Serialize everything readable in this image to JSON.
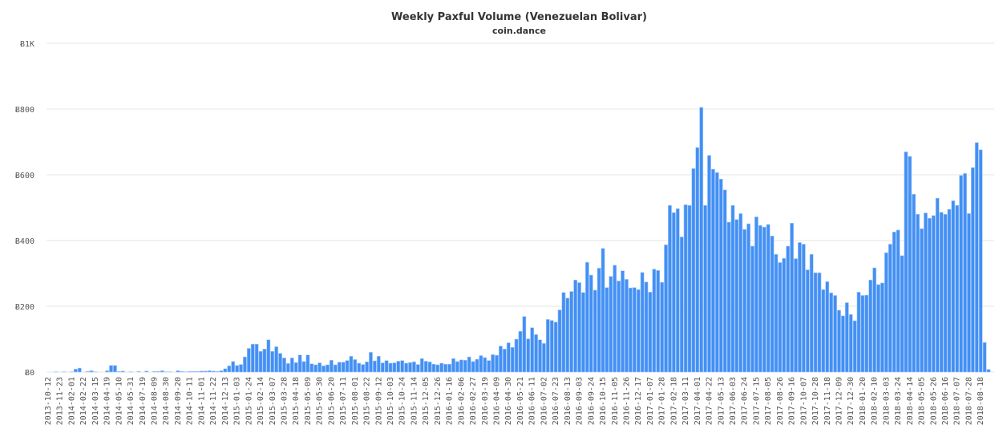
{
  "chart_data": {
    "type": "bar",
    "title": "Weekly Paxful Volume (Venezuelan Bolivar)",
    "subtitle": "coin.dance",
    "xlabel": "",
    "ylabel": "",
    "ylim": [
      0,
      1000
    ],
    "grid": true,
    "y_ticks": [
      0,
      200,
      400,
      600,
      800,
      1000
    ],
    "y_tick_labels": [
      "Ƀ0",
      "Ƀ200",
      "Ƀ400",
      "Ƀ600",
      "Ƀ800",
      "Ƀ1K"
    ],
    "x_tick_labels": [
      "2013-10-12",
      "2013-11-23",
      "2014-02-01",
      "2014-02-22",
      "2014-03-15",
      "2014-04-19",
      "2014-05-10",
      "2014-05-31",
      "2014-07-19",
      "2014-08-09",
      "2014-08-30",
      "2014-09-20",
      "2014-10-11",
      "2014-11-01",
      "2014-11-22",
      "2014-12-13",
      "2015-01-03",
      "2015-01-24",
      "2015-02-14",
      "2015-03-07",
      "2015-03-28",
      "2015-04-18",
      "2015-05-09",
      "2015-05-30",
      "2015-06-20",
      "2015-07-11",
      "2015-08-01",
      "2015-08-22",
      "2015-09-12",
      "2015-10-03",
      "2015-10-24",
      "2015-11-14",
      "2015-12-05",
      "2015-12-26",
      "2016-01-16",
      "2016-02-06",
      "2016-02-27",
      "2016-03-19",
      "2016-04-09",
      "2016-04-30",
      "2016-05-21",
      "2016-06-11",
      "2016-07-02",
      "2016-07-23",
      "2016-08-13",
      "2016-09-03",
      "2016-09-24",
      "2016-10-15",
      "2016-11-05",
      "2016-11-26",
      "2016-12-17",
      "2017-01-07",
      "2017-01-28",
      "2017-02-18",
      "2017-03-11",
      "2017-04-01",
      "2017-04-22",
      "2017-05-13",
      "2017-06-03",
      "2017-06-24",
      "2017-07-15",
      "2017-08-05",
      "2017-08-26",
      "2017-09-16",
      "2017-10-07",
      "2017-10-28",
      "2017-11-18",
      "2017-12-09",
      "2017-12-30",
      "2018-01-20",
      "2018-02-10",
      "2018-03-03",
      "2018-03-24",
      "2018-04-14",
      "2018-05-05",
      "2018-05-26",
      "2018-06-16",
      "2018-07-07",
      "2018-07-28",
      "2018-08-18"
    ],
    "x_tick_every": 3,
    "values": [
      0,
      0,
      1,
      0,
      1,
      0,
      1,
      9,
      12,
      0,
      2,
      4,
      1,
      0,
      0,
      4,
      20,
      20,
      2,
      3,
      0,
      1,
      0,
      2,
      0,
      3,
      0,
      2,
      2,
      4,
      1,
      1,
      0,
      4,
      2,
      1,
      2,
      2,
      2,
      3,
      3,
      4,
      3,
      2,
      4,
      10,
      19,
      32,
      20,
      23,
      46,
      72,
      85,
      85,
      63,
      70,
      98,
      63,
      77,
      57,
      43,
      26,
      43,
      29,
      52,
      32,
      52,
      25,
      22,
      28,
      19,
      22,
      36,
      22,
      30,
      30,
      35,
      48,
      38,
      27,
      23,
      31,
      60,
      34,
      48,
      28,
      35,
      27,
      28,
      33,
      35,
      27,
      29,
      31,
      23,
      41,
      33,
      31,
      24,
      22,
      27,
      24,
      24,
      41,
      32,
      37,
      36,
      46,
      32,
      39,
      50,
      44,
      35,
      53,
      51,
      79,
      70,
      89,
      75,
      100,
      124,
      169,
      101,
      135,
      114,
      98,
      87,
      160,
      157,
      152,
      189,
      242,
      225,
      245,
      280,
      272,
      242,
      334,
      295,
      249,
      316,
      376,
      257,
      291,
      325,
      277,
      308,
      282,
      256,
      257,
      251,
      303,
      274,
      243,
      313,
      309,
      273,
      387,
      507,
      485,
      497,
      411,
      509,
      507,
      619,
      683,
      805,
      507,
      659,
      617,
      607,
      587,
      554,
      456,
      507,
      464,
      482,
      434,
      451,
      383,
      472,
      446,
      441,
      449,
      414,
      358,
      333,
      346,
      383,
      453,
      345,
      394,
      389,
      311,
      358,
      302,
      302,
      251,
      275,
      241,
      233,
      188,
      171,
      211,
      175,
      156,
      243,
      233,
      234,
      280,
      317,
      266,
      271,
      363,
      389,
      426,
      432,
      354,
      670,
      656,
      541,
      480,
      436,
      484,
      468,
      476,
      529,
      486,
      480,
      495,
      521,
      507,
      598,
      604,
      482,
      622,
      698,
      676,
      90,
      8
    ],
    "bar_color": "#4390f4",
    "bar_edge_color": "#a9cbfa",
    "grid_color": "#e6e6e6"
  }
}
